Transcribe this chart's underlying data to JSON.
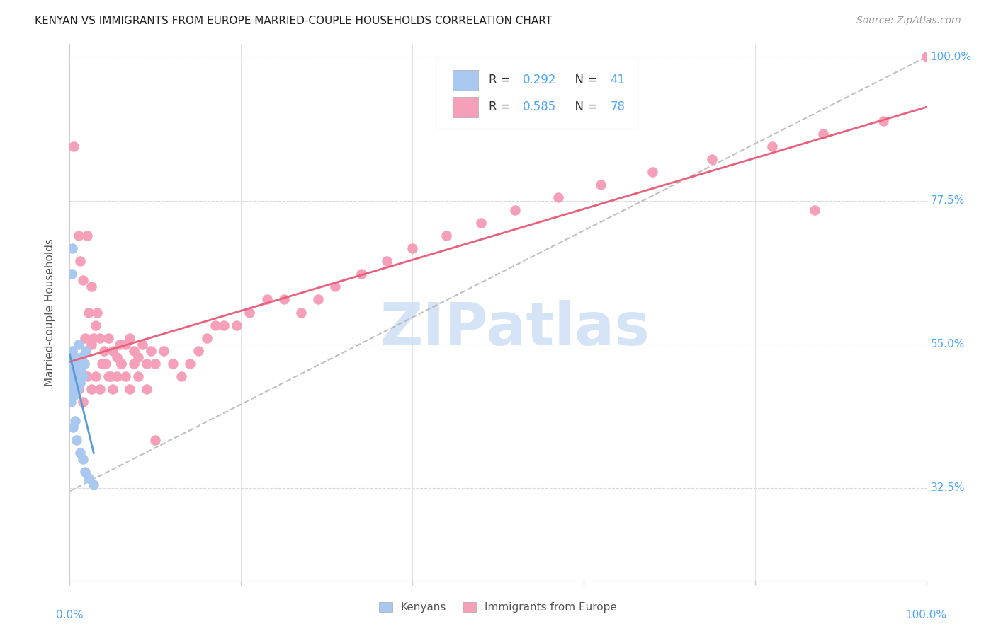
{
  "title": "KENYAN VS IMMIGRANTS FROM EUROPE MARRIED-COUPLE HOUSEHOLDS CORRELATION CHART",
  "source": "Source: ZipAtlas.com",
  "ylabel": "Married-couple Households",
  "legend_kenyans": "Kenyans",
  "legend_europe": "Immigrants from Europe",
  "R_kenyans": 0.292,
  "N_kenyans": 41,
  "R_europe": 0.585,
  "N_europe": 78,
  "background_color": "#ffffff",
  "grid_color": "#d8d8d8",
  "title_color": "#222222",
  "source_color": "#999999",
  "label_color": "#4da6ff",
  "kenyan_color": "#a8c8f0",
  "europe_color": "#f5a0b8",
  "trendline_color_kenyan": "#5b9bd5",
  "trendline_color_europe": "#e8607a",
  "dashed_line_color": "#b0b0b0",
  "watermark_color": "#cde0f5",
  "xmin": 0.0,
  "xmax": 1.0,
  "ymin": 0.18,
  "ymax": 1.02,
  "ytick_vals": [
    0.325,
    0.55,
    0.775,
    1.0
  ],
  "ytick_labels": [
    "32.5%",
    "55.0%",
    "77.5%",
    "100.0%"
  ],
  "kenyan_x": [
    0.001,
    0.001,
    0.001,
    0.002,
    0.002,
    0.002,
    0.003,
    0.003,
    0.003,
    0.004,
    0.004,
    0.005,
    0.005,
    0.005,
    0.006,
    0.006,
    0.007,
    0.007,
    0.008,
    0.008,
    0.009,
    0.009,
    0.01,
    0.011,
    0.012,
    0.013,
    0.014,
    0.015,
    0.017,
    0.019,
    0.002,
    0.003,
    0.004,
    0.006,
    0.008,
    0.01,
    0.012,
    0.015,
    0.018,
    0.022,
    0.028
  ],
  "kenyan_y": [
    0.5,
    0.48,
    0.46,
    0.52,
    0.5,
    0.47,
    0.54,
    0.51,
    0.48,
    0.53,
    0.5,
    0.52,
    0.49,
    0.47,
    0.53,
    0.5,
    0.51,
    0.48,
    0.52,
    0.49,
    0.51,
    0.48,
    0.52,
    0.5,
    0.49,
    0.51,
    0.53,
    0.5,
    0.52,
    0.54,
    0.66,
    0.7,
    0.42,
    0.43,
    0.4,
    0.55,
    0.38,
    0.37,
    0.35,
    0.34,
    0.33
  ],
  "europe_x": [
    0.005,
    0.008,
    0.01,
    0.012,
    0.015,
    0.018,
    0.02,
    0.022,
    0.025,
    0.025,
    0.028,
    0.03,
    0.032,
    0.035,
    0.038,
    0.04,
    0.042,
    0.045,
    0.048,
    0.05,
    0.055,
    0.058,
    0.06,
    0.065,
    0.07,
    0.075,
    0.08,
    0.085,
    0.09,
    0.095,
    0.01,
    0.015,
    0.02,
    0.025,
    0.03,
    0.035,
    0.04,
    0.045,
    0.05,
    0.055,
    0.06,
    0.065,
    0.07,
    0.075,
    0.08,
    0.09,
    0.1,
    0.11,
    0.12,
    0.13,
    0.14,
    0.15,
    0.16,
    0.17,
    0.18,
    0.195,
    0.21,
    0.23,
    0.25,
    0.27,
    0.29,
    0.31,
    0.34,
    0.37,
    0.4,
    0.44,
    0.48,
    0.52,
    0.57,
    0.62,
    0.68,
    0.75,
    0.82,
    0.88,
    0.95,
    1.0,
    0.1,
    0.87
  ],
  "europe_y": [
    0.86,
    0.5,
    0.72,
    0.68,
    0.65,
    0.56,
    0.72,
    0.6,
    0.55,
    0.64,
    0.56,
    0.58,
    0.6,
    0.56,
    0.52,
    0.54,
    0.52,
    0.56,
    0.5,
    0.54,
    0.53,
    0.55,
    0.52,
    0.55,
    0.56,
    0.54,
    0.53,
    0.55,
    0.52,
    0.54,
    0.48,
    0.46,
    0.5,
    0.48,
    0.5,
    0.48,
    0.52,
    0.5,
    0.48,
    0.5,
    0.52,
    0.5,
    0.48,
    0.52,
    0.5,
    0.48,
    0.52,
    0.54,
    0.52,
    0.5,
    0.52,
    0.54,
    0.56,
    0.58,
    0.58,
    0.58,
    0.6,
    0.62,
    0.62,
    0.6,
    0.62,
    0.64,
    0.66,
    0.68,
    0.7,
    0.72,
    0.74,
    0.76,
    0.78,
    0.8,
    0.82,
    0.84,
    0.86,
    0.88,
    0.9,
    1.0,
    0.4,
    0.76
  ]
}
